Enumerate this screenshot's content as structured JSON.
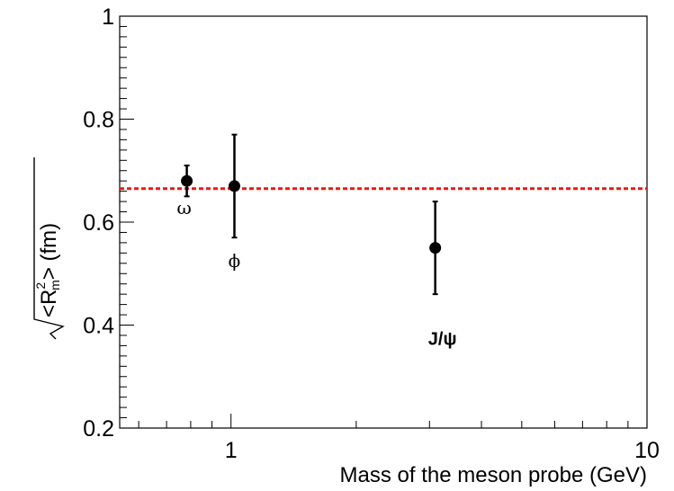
{
  "chart_data": {
    "type": "scatter",
    "title": "",
    "xlabel": "Mass of the meson probe (GeV)",
    "ylabel": "<R",
    "ylabel_sup": "2",
    "ylabel_sub": "m",
    "ylabel_suffix": "> (fm)",
    "x_scale": "log",
    "xlim": [
      0.54,
      10
    ],
    "ylim": [
      0.2,
      1.0
    ],
    "x_ticks": [
      {
        "value": 1,
        "label": "1"
      },
      {
        "value": 10,
        "label": "10"
      }
    ],
    "y_ticks": [
      {
        "value": 0.2,
        "label": "0.2"
      },
      {
        "value": 0.4,
        "label": "0.4"
      },
      {
        "value": 0.6,
        "label": "0.6"
      },
      {
        "value": 0.8,
        "label": "0.8"
      },
      {
        "value": 1.0,
        "label": "1"
      }
    ],
    "points": [
      {
        "label": "ω",
        "x": 0.783,
        "y": 0.68,
        "yerr_low": 0.03,
        "yerr_high": 0.03,
        "bold": false
      },
      {
        "label": "ϕ",
        "x": 1.019,
        "y": 0.67,
        "yerr_low": 0.1,
        "yerr_high": 0.1,
        "bold": false
      },
      {
        "label": "J/ψ",
        "x": 3.097,
        "y": 0.55,
        "yerr_low": 0.09,
        "yerr_high": 0.09,
        "bold": true
      }
    ],
    "reference_line": {
      "y": 0.665,
      "color": "#e41a1c",
      "style": "dashed"
    },
    "point_color": "#000000",
    "grid": false,
    "legend": "none"
  }
}
